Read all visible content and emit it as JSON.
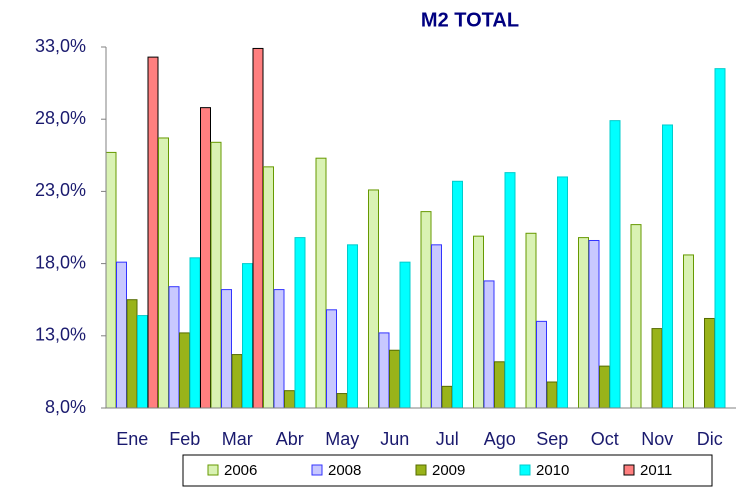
{
  "chart_data": {
    "type": "bar",
    "title": "M2 TOTAL",
    "categories": [
      "Ene",
      "Feb",
      "Mar",
      "Abr",
      "May",
      "Jun",
      "Jul",
      "Ago",
      "Sep",
      "Oct",
      "Nov",
      "Dic"
    ],
    "series": [
      {
        "name": "2006",
        "color": "#d9f2b3",
        "stroke": "#669900",
        "values": [
          25.7,
          26.7,
          26.4,
          24.7,
          25.3,
          23.1,
          21.6,
          19.9,
          20.1,
          19.8,
          20.7,
          18.6
        ]
      },
      {
        "name": "2008",
        "color": "#c8c8ff",
        "stroke": "#3333ff",
        "values": [
          18.1,
          16.4,
          16.2,
          16.2,
          14.8,
          13.2,
          19.3,
          16.8,
          14.0,
          19.6,
          null,
          null
        ]
      },
      {
        "name": "2009",
        "color": "#99b31a",
        "stroke": "#556b00",
        "values": [
          15.5,
          13.2,
          11.7,
          9.2,
          9.0,
          12.0,
          9.5,
          11.2,
          9.8,
          10.9,
          13.5,
          14.2
        ]
      },
      {
        "name": "2010",
        "color": "#00ffff",
        "stroke": "#00cccc",
        "values": [
          14.4,
          18.4,
          18.0,
          19.8,
          19.3,
          18.1,
          23.7,
          24.3,
          24.0,
          27.9,
          27.6,
          31.5
        ]
      },
      {
        "name": "2011",
        "color": "#ff7f7f",
        "stroke": "#000000",
        "values": [
          32.3,
          28.8,
          32.9,
          null,
          null,
          null,
          null,
          null,
          null,
          null,
          null,
          null
        ]
      }
    ],
    "ylim": [
      8,
      33
    ],
    "yticks": [
      {
        "value": 8,
        "label": "8,0%"
      },
      {
        "value": 13,
        "label": "13,0%"
      },
      {
        "value": 18,
        "label": "18,0%"
      },
      {
        "value": 23,
        "label": "23,0%"
      },
      {
        "value": 28,
        "label": "28,0%"
      },
      {
        "value": 33,
        "label": "33,0%"
      }
    ],
    "grid": false
  }
}
